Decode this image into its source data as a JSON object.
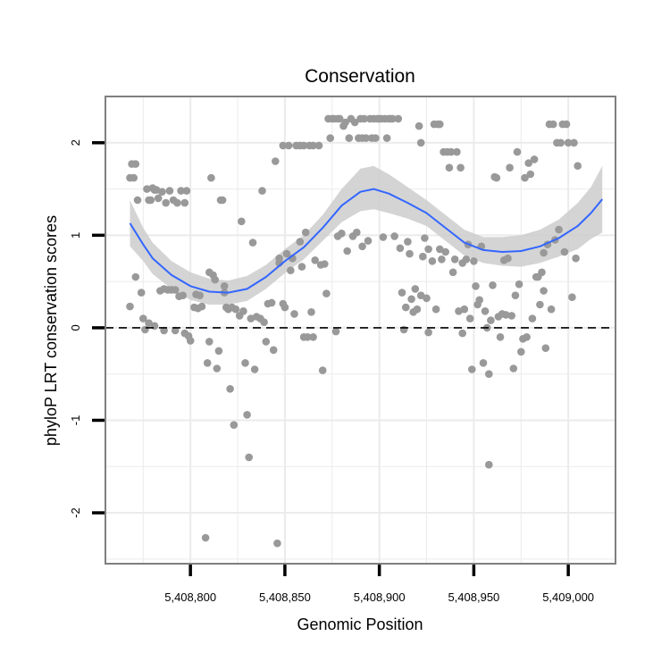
{
  "chart_data": {
    "type": "scatter",
    "title": "Conservation",
    "xlabel": "Genomic Position",
    "ylabel": "phyloP LRT conservation scores",
    "xlim": [
      5408755,
      5409025
    ],
    "ylim": [
      -2.55,
      2.5
    ],
    "x_ticks": [
      5408800,
      5408850,
      5408900,
      5408950,
      5409000
    ],
    "x_tick_labels": [
      "5,408,800",
      "5,408,850",
      "5,408,900",
      "5,408,950",
      "5,409,000"
    ],
    "y_ticks": [
      -2,
      -1,
      0,
      1,
      2
    ],
    "y_tick_labels": [
      "-2",
      "-1",
      "0",
      "1",
      "2"
    ],
    "reference_line": {
      "y": 0,
      "style": "dashed"
    },
    "grid": true,
    "colors": {
      "points": "#999999",
      "smooth": "#3366FF",
      "band": "#cccccc",
      "grid": "#ebebeb",
      "border": "#7f7f7f",
      "reference": "#000000"
    },
    "series": [
      {
        "name": "phyloP scores",
        "kind": "points",
        "points": [
          [
            5408768,
            0.23
          ],
          [
            5408768,
            1.62
          ],
          [
            5408769,
            1.77
          ],
          [
            5408770,
            1.62
          ],
          [
            5408771,
            1.77
          ],
          [
            5408771,
            0.55
          ],
          [
            5408772,
            1.38
          ],
          [
            5408774,
            0.38
          ],
          [
            5408775,
            0.1
          ],
          [
            5408776,
            -0.02
          ],
          [
            5408777,
            1.5
          ],
          [
            5408778,
            1.38
          ],
          [
            5408778,
            0.05
          ],
          [
            5408779,
            1.38
          ],
          [
            5408780,
            1.51
          ],
          [
            5408781,
            1.49
          ],
          [
            5408781,
            0.02
          ],
          [
            5408782,
            1.49
          ],
          [
            5408783,
            1.4
          ],
          [
            5408784,
            0.4
          ],
          [
            5408785,
            1.47
          ],
          [
            5408786,
            -0.03
          ],
          [
            5408786,
            0.42
          ],
          [
            5408787,
            1.35
          ],
          [
            5408788,
            0.41
          ],
          [
            5408789,
            1.48
          ],
          [
            5408790,
            0.41
          ],
          [
            5408791,
            1.38
          ],
          [
            5408792,
            -0.03
          ],
          [
            5408792,
            0.41
          ],
          [
            5408793,
            1.35
          ],
          [
            5408794,
            0.34
          ],
          [
            5408795,
            1.48
          ],
          [
            5408796,
            0.35
          ],
          [
            5408797,
            -0.06
          ],
          [
            5408797,
            1.35
          ],
          [
            5408798,
            1.48
          ],
          [
            5408799,
            -0.09
          ],
          [
            5408800,
            -0.14
          ],
          [
            5408802,
            0.22
          ],
          [
            5408803,
            0.36
          ],
          [
            5408804,
            0.21
          ],
          [
            5408805,
            0.35
          ],
          [
            5408806,
            0.23
          ],
          [
            5408808,
            -2.27
          ],
          [
            5408809,
            -0.38
          ],
          [
            5408810,
            -0.15
          ],
          [
            5408810,
            0.6
          ],
          [
            5408811,
            1.62
          ],
          [
            5408812,
            0.57
          ],
          [
            5408813,
            0.52
          ],
          [
            5408814,
            -0.44
          ],
          [
            5408815,
            -0.25
          ],
          [
            5408816,
            1.38
          ],
          [
            5408817,
            1.38
          ],
          [
            5408818,
            0.38
          ],
          [
            5408818,
            0.45
          ],
          [
            5408819,
            0.22
          ],
          [
            5408820,
            0.2
          ],
          [
            5408821,
            -0.66
          ],
          [
            5408822,
            0.22
          ],
          [
            5408823,
            -1.05
          ],
          [
            5408824,
            0.2
          ],
          [
            5408826,
            0.13
          ],
          [
            5408827,
            1.15
          ],
          [
            5408828,
            0.18
          ],
          [
            5408829,
            -0.38
          ],
          [
            5408830,
            -0.94
          ],
          [
            5408831,
            -1.4
          ],
          [
            5408832,
            0.1
          ],
          [
            5408833,
            0.92
          ],
          [
            5408834,
            -0.45
          ],
          [
            5408835,
            0.12
          ],
          [
            5408837,
            0.1
          ],
          [
            5408838,
            1.48
          ],
          [
            5408839,
            0.06
          ],
          [
            5408840,
            -0.15
          ],
          [
            5408841,
            0.26
          ],
          [
            5408843,
            0.27
          ],
          [
            5408844,
            -0.24
          ],
          [
            5408845,
            1.8
          ],
          [
            5408846,
            -2.33
          ],
          [
            5408847,
            0.7
          ],
          [
            5408847,
            0.75
          ],
          [
            5408849,
            0.26
          ],
          [
            5408849,
            1.97
          ],
          [
            5408850,
            0.22
          ],
          [
            5408851,
            0.8
          ],
          [
            5408852,
            1.97
          ],
          [
            5408853,
            0.62
          ],
          [
            5408854,
            0.75
          ],
          [
            5408855,
            0.15
          ],
          [
            5408856,
            1.97
          ],
          [
            5408858,
            0.93
          ],
          [
            5408858,
            1.97
          ],
          [
            5408859,
            0.66
          ],
          [
            5408860,
            -0.1
          ],
          [
            5408860,
            1.97
          ],
          [
            5408861,
            1.03
          ],
          [
            5408862,
            -0.1
          ],
          [
            5408863,
            1.97
          ],
          [
            5408864,
            0.17
          ],
          [
            5408865,
            -0.1
          ],
          [
            5408865,
            1.97
          ],
          [
            5408866,
            0.73
          ],
          [
            5408868,
            1.97
          ],
          [
            5408869,
            0.68
          ],
          [
            5408870,
            -0.46
          ],
          [
            5408871,
            0.69
          ],
          [
            5408872,
            0.37
          ],
          [
            5408873,
            2.26
          ],
          [
            5408874,
            2.05
          ],
          [
            5408875,
            2.26
          ],
          [
            5408876,
            2.26
          ],
          [
            5408877,
            -0.04
          ],
          [
            5408878,
            0.99
          ],
          [
            5408878,
            2.26
          ],
          [
            5408879,
            2.26
          ],
          [
            5408880,
            1.02
          ],
          [
            5408881,
            2.18
          ],
          [
            5408882,
            2.22
          ],
          [
            5408883,
            0.83
          ],
          [
            5408884,
            2.05
          ],
          [
            5408885,
            2.26
          ],
          [
            5408886,
            0.99
          ],
          [
            5408887,
            2.22
          ],
          [
            5408888,
            1.03
          ],
          [
            5408889,
            2.05
          ],
          [
            5408890,
            2.26
          ],
          [
            5408891,
            0.88
          ],
          [
            5408891,
            2.05
          ],
          [
            5408892,
            2.26
          ],
          [
            5408893,
            2.05
          ],
          [
            5408894,
            0.94
          ],
          [
            5408895,
            2.26
          ],
          [
            5408896,
            2.05
          ],
          [
            5408897,
            2.26
          ],
          [
            5408898,
            2.05
          ],
          [
            5408899,
            2.26
          ],
          [
            5408900,
            2.26
          ],
          [
            5408901,
            2.26
          ],
          [
            5408902,
            0.98
          ],
          [
            5408903,
            2.26
          ],
          [
            5408904,
            2.05
          ],
          [
            5408905,
            2.26
          ],
          [
            5408906,
            2.26
          ],
          [
            5408907,
            2.26
          ],
          [
            5408908,
            0.99
          ],
          [
            5408910,
            2.26
          ],
          [
            5408911,
            0.86
          ],
          [
            5408912,
            0.38
          ],
          [
            5408913,
            -0.02
          ],
          [
            5408914,
            0.22
          ],
          [
            5408915,
            0.93
          ],
          [
            5408916,
            0.8
          ],
          [
            5408917,
            0.31
          ],
          [
            5408918,
            0.17
          ],
          [
            5408919,
            0.42
          ],
          [
            5408920,
            0.2
          ],
          [
            5408921,
            2.18
          ],
          [
            5408922,
            0.35
          ],
          [
            5408922,
            2.0
          ],
          [
            5408923,
            0.77
          ],
          [
            5408924,
            0.97
          ],
          [
            5408925,
            0.32
          ],
          [
            5408926,
            -0.05
          ],
          [
            5408926,
            0.85
          ],
          [
            5408928,
            0.72
          ],
          [
            5408929,
            2.2
          ],
          [
            5408930,
            0.2
          ],
          [
            5408931,
            2.2
          ],
          [
            5408932,
            0.85
          ],
          [
            5408932,
            2.2
          ],
          [
            5408933,
            0.74
          ],
          [
            5408934,
            1.9
          ],
          [
            5408935,
            0.82
          ],
          [
            5408936,
            1.9
          ],
          [
            5408937,
            1.73
          ],
          [
            5408938,
            1.9
          ],
          [
            5408939,
            0.6
          ],
          [
            5408940,
            0.74
          ],
          [
            5408941,
            1.9
          ],
          [
            5408942,
            0.18
          ],
          [
            5408943,
            1.73
          ],
          [
            5408944,
            0.7
          ],
          [
            5408944,
            -0.06
          ],
          [
            5408945,
            0.2
          ],
          [
            5408946,
            0.74
          ],
          [
            5408947,
            0.9
          ],
          [
            5408948,
            0.1
          ],
          [
            5408949,
            -0.45
          ],
          [
            5408950,
            0.72
          ],
          [
            5408951,
            0.45
          ],
          [
            5408952,
            0.25
          ],
          [
            5408953,
            0.3
          ],
          [
            5408954,
            0.88
          ],
          [
            5408955,
            -0.38
          ],
          [
            5408956,
            0.18
          ],
          [
            5408957,
            0.0
          ],
          [
            5408958,
            -0.5
          ],
          [
            5408958,
            -1.48
          ],
          [
            5408959,
            0.08
          ],
          [
            5408960,
            0.46
          ],
          [
            5408961,
            1.63
          ],
          [
            5408962,
            1.62
          ],
          [
            5408963,
            0.12
          ],
          [
            5408964,
            -0.1
          ],
          [
            5408965,
            0.15
          ],
          [
            5408966,
            0.73
          ],
          [
            5408967,
            0.14
          ],
          [
            5408968,
            0.75
          ],
          [
            5408969,
            1.73
          ],
          [
            5408970,
            0.13
          ],
          [
            5408971,
            -0.44
          ],
          [
            5408972,
            0.35
          ],
          [
            5408973,
            1.9
          ],
          [
            5408974,
            0.47
          ],
          [
            5408975,
            -0.26
          ],
          [
            5408976,
            -0.12
          ],
          [
            5408977,
            1.62
          ],
          [
            5408978,
            -0.1
          ],
          [
            5408979,
            1.78
          ],
          [
            5408980,
            1.66
          ],
          [
            5408981,
            0.1
          ],
          [
            5408982,
            1.82
          ],
          [
            5408983,
            0.55
          ],
          [
            5408984,
            0.55
          ],
          [
            5408985,
            0.25
          ],
          [
            5408986,
            0.6
          ],
          [
            5408987,
            0.4
          ],
          [
            5408987,
            0.81
          ],
          [
            5408988,
            -0.22
          ],
          [
            5408989,
            0.9
          ],
          [
            5408990,
            2.2
          ],
          [
            5408991,
            0.2
          ],
          [
            5408992,
            2.2
          ],
          [
            5408993,
            0.95
          ],
          [
            5408994,
            2.0
          ],
          [
            5408995,
            1.06
          ],
          [
            5408996,
            2.0
          ],
          [
            5408997,
            2.2
          ],
          [
            5408998,
            0.82
          ],
          [
            5408999,
            2.2
          ],
          [
            5409000,
            2.0
          ],
          [
            5409002,
            0.33
          ],
          [
            5409003,
            2.0
          ],
          [
            5409004,
            0.75
          ],
          [
            5409005,
            1.75
          ]
        ]
      },
      {
        "name": "smoothed fit",
        "kind": "line",
        "x": [
          5408768,
          5408775,
          5408780,
          5408790,
          5408800,
          5408810,
          5408820,
          5408830,
          5408840,
          5408850,
          5408860,
          5408870,
          5408880,
          5408890,
          5408897,
          5408905,
          5408915,
          5408925,
          5408935,
          5408945,
          5408955,
          5408965,
          5408975,
          5408985,
          5408995,
          5409005,
          5409012,
          5409018
        ],
        "y": [
          1.13,
          0.9,
          0.75,
          0.57,
          0.45,
          0.39,
          0.38,
          0.42,
          0.55,
          0.72,
          0.87,
          1.08,
          1.32,
          1.47,
          1.5,
          1.45,
          1.35,
          1.24,
          1.08,
          0.92,
          0.84,
          0.82,
          0.83,
          0.88,
          0.97,
          1.1,
          1.24,
          1.39
        ]
      },
      {
        "name": "confidence band",
        "kind": "band",
        "x": [
          5408768,
          5408775,
          5408780,
          5408790,
          5408800,
          5408810,
          5408820,
          5408830,
          5408840,
          5408850,
          5408860,
          5408870,
          5408880,
          5408890,
          5408897,
          5408905,
          5408915,
          5408925,
          5408935,
          5408945,
          5408955,
          5408965,
          5408975,
          5408985,
          5408995,
          5409005,
          5409012,
          5409018
        ],
        "upper": [
          1.38,
          1.08,
          0.92,
          0.72,
          0.6,
          0.53,
          0.51,
          0.56,
          0.68,
          0.85,
          1.0,
          1.22,
          1.5,
          1.72,
          1.75,
          1.66,
          1.52,
          1.38,
          1.22,
          1.06,
          0.98,
          0.98,
          1.0,
          1.06,
          1.17,
          1.35,
          1.52,
          1.75
        ],
        "lower": [
          0.88,
          0.72,
          0.58,
          0.42,
          0.3,
          0.25,
          0.25,
          0.29,
          0.42,
          0.59,
          0.74,
          0.94,
          1.14,
          1.26,
          1.28,
          1.24,
          1.18,
          1.1,
          0.94,
          0.78,
          0.7,
          0.67,
          0.66,
          0.7,
          0.77,
          0.85,
          0.96,
          1.03
        ]
      }
    ]
  }
}
